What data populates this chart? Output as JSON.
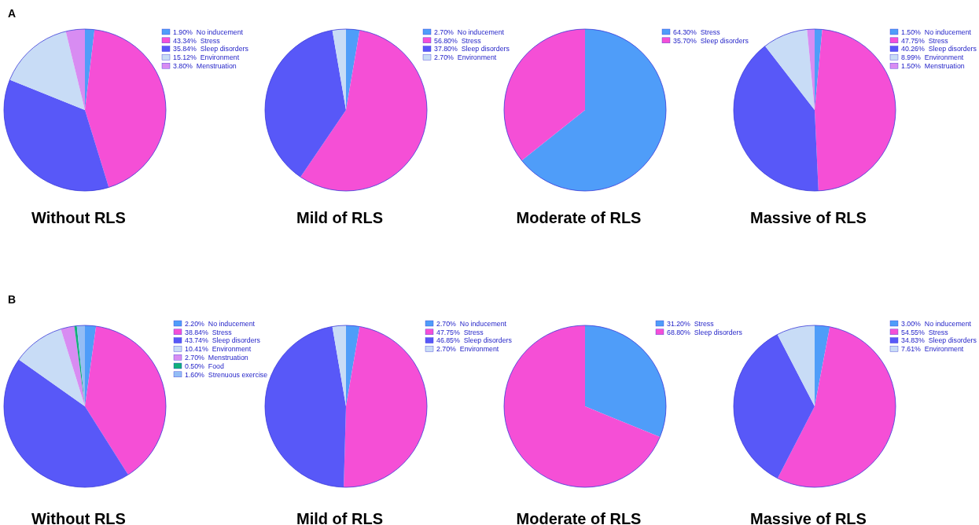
{
  "chart_data": [
    {
      "type": "pie",
      "title": "Without RLS",
      "annotations": [
        "A"
      ],
      "legend": "right",
      "categories": [
        "No inducement",
        "Stress",
        "Sleep disorders",
        "Environment",
        "Menstruation"
      ],
      "values": [
        1.9,
        43.34,
        35.84,
        15.12,
        3.8
      ],
      "value_labels": [
        "1.90%",
        "43.34%",
        "35.84%",
        "15.12%",
        "3.80%"
      ],
      "colors": [
        "#4f9df9",
        "#f54fd6",
        "#5858f8",
        "#c8dcf6",
        "#d88cf2"
      ]
    },
    {
      "type": "pie",
      "title": "Mild of RLS",
      "legend": "right",
      "categories": [
        "No inducement",
        "Stress",
        "Sleep disorders",
        "Environment"
      ],
      "values": [
        2.7,
        56.8,
        37.8,
        2.7
      ],
      "value_labels": [
        "2.70%",
        "56.80%",
        "37.80%",
        "2.70%"
      ],
      "colors": [
        "#4f9df9",
        "#f54fd6",
        "#5858f8",
        "#c8dcf6"
      ]
    },
    {
      "type": "pie",
      "title": "Moderate of RLS",
      "legend": "right",
      "categories": [
        "Stress",
        "Sleep disorders"
      ],
      "values": [
        64.3,
        35.7
      ],
      "value_labels": [
        "64.30%",
        "35.70%"
      ],
      "colors": [
        "#4f9df9",
        "#f54fd6"
      ]
    },
    {
      "type": "pie",
      "title": "Massive of RLS",
      "legend": "right",
      "categories": [
        "No inducement",
        "Stress",
        "Sleep disorders",
        "Environment",
        "Menstruation"
      ],
      "values": [
        1.5,
        47.75,
        40.26,
        8.99,
        1.5
      ],
      "value_labels": [
        "1.50%",
        "47.75%",
        "40.26%",
        "8.99%",
        "1.50%"
      ],
      "colors": [
        "#4f9df9",
        "#f54fd6",
        "#5858f8",
        "#c8dcf6",
        "#d88cf2"
      ]
    },
    {
      "type": "pie",
      "title": "Without RLS",
      "annotations": [
        "B"
      ],
      "legend": "right",
      "categories": [
        "No inducement",
        "Stress",
        "Sleep disorders",
        "Environment",
        "Menstruation",
        "Food",
        "Strenuous exercise"
      ],
      "values": [
        2.2,
        38.84,
        43.74,
        10.41,
        2.7,
        0.5,
        1.6
      ],
      "value_labels": [
        "2.20%",
        "38.84%",
        "43.74%",
        "10.41%",
        "2.70%",
        "0.50%",
        "1.60%"
      ],
      "colors": [
        "#4f9df9",
        "#f54fd6",
        "#5858f8",
        "#c8dcf6",
        "#d88cf2",
        "#10b07a",
        "#93bdf5"
      ]
    },
    {
      "type": "pie",
      "title": "Mild of RLS",
      "legend": "right",
      "categories": [
        "No inducement",
        "Stress",
        "Sleep disorders",
        "Environment"
      ],
      "values": [
        2.7,
        47.75,
        46.85,
        2.7
      ],
      "value_labels": [
        "2.70%",
        "47.75%",
        "46.85%",
        "2.70%"
      ],
      "colors": [
        "#4f9df9",
        "#f54fd6",
        "#5858f8",
        "#c8dcf6"
      ]
    },
    {
      "type": "pie",
      "title": "Moderate of RLS",
      "legend": "right",
      "categories": [
        "Stress",
        "Sleep disorders"
      ],
      "values": [
        31.2,
        68.8
      ],
      "value_labels": [
        "31.20%",
        "68.80%"
      ],
      "colors": [
        "#4f9df9",
        "#f54fd6"
      ]
    },
    {
      "type": "pie",
      "title": "Massive of RLS",
      "legend": "right",
      "categories": [
        "No inducement",
        "Stress",
        "Sleep disorders",
        "Environment"
      ],
      "values": [
        3.0,
        54.55,
        34.83,
        7.61
      ],
      "value_labels": [
        "3.00%",
        "54.55%",
        "34.83%",
        "7.61%"
      ],
      "colors": [
        "#4f9df9",
        "#f54fd6",
        "#5858f8",
        "#c8dcf6"
      ]
    }
  ]
}
